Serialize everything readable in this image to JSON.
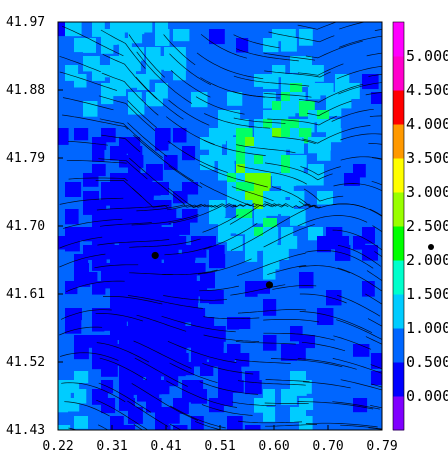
{
  "chart_data": {
    "type": "heatmap",
    "title": "",
    "xlabel": "",
    "ylabel": "",
    "x_ticks": [
      "0.22",
      "0.31",
      "0.41",
      "0.51",
      "0.60",
      "0.70",
      "0.79"
    ],
    "y_ticks": [
      "41.97",
      "41.88",
      "41.79",
      "41.70",
      "41.61",
      "41.52",
      "41.43"
    ],
    "xlim": [
      0.22,
      0.79
    ],
    "ylim": [
      41.43,
      41.97
    ],
    "colorbar": {
      "tick_labels": [
        "0.000",
        "0.500",
        "1.000",
        "1.500",
        "2.000",
        "2.500",
        "3.000",
        "3.500",
        "4.000",
        "4.500",
        "5.000"
      ],
      "colors": [
        "#7f00ff",
        "#0000ff",
        "#0066ff",
        "#00ccff",
        "#00ffcc",
        "#00ff00",
        "#99ff00",
        "#ffff00",
        "#ff9900",
        "#ff0000",
        "#ff00cc",
        "#ff00ff"
      ]
    },
    "overlays": [
      "streamlines",
      "station-markers"
    ],
    "stations": [
      {
        "x": 0.391,
        "y": 41.661
      },
      {
        "x": 0.592,
        "y": 41.622
      }
    ]
  }
}
